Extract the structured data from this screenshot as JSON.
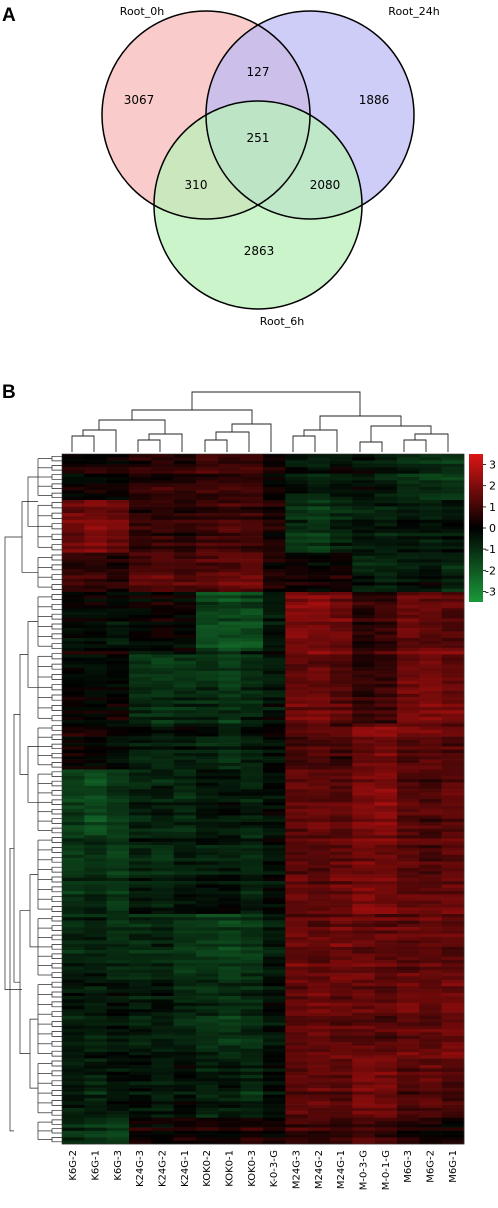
{
  "figure": {
    "panel_a_label": "A",
    "panel_b_label": "B"
  },
  "chart_data": [
    {
      "type": "venn",
      "sets": [
        {
          "name": "Root_0h",
          "color": "#f7b9b9"
        },
        {
          "name": "Root_24h",
          "color": "#bcbcf6"
        },
        {
          "name": "Root_6h",
          "color": "#b9f0b9"
        }
      ],
      "regions": [
        {
          "key": "only_0h",
          "value": "3067"
        },
        {
          "key": "only_24h",
          "value": "1886"
        },
        {
          "key": "only_6h",
          "value": "2863"
        },
        {
          "key": "0h_24h",
          "value": "127"
        },
        {
          "key": "0h_6h",
          "value": "310"
        },
        {
          "key": "24h_6h",
          "value": "2080"
        },
        {
          "key": "all",
          "value": "251"
        }
      ]
    },
    {
      "type": "heatmap",
      "columns": [
        "K6G-2",
        "K6G-1",
        "K6G-3",
        "K24G-3",
        "K24G-2",
        "K24G-1",
        "KOK0-2",
        "KOK0-1",
        "KOK0-3",
        "K-0-3-G",
        "M24G-3",
        "M24G-2",
        "M24G-1",
        "M-0-3-G",
        "M-0-1-G",
        "M6G-3",
        "M6G-2",
        "M6G-1"
      ],
      "colorbar": {
        "ticks": [
          "3",
          "2",
          "1",
          "0",
          "-1",
          "-2",
          "-3"
        ],
        "range": [
          -3.5,
          3.5
        ],
        "high_color": "#cc1111",
        "mid_color": "#000000",
        "low_color": "#1a9a3a"
      },
      "rows_approx": 230,
      "row_blocks": [
        {
          "rows": 14,
          "values": [
            0.1,
            0.2,
            0.1,
            0.4,
            0.5,
            0.4,
            0.6,
            0.6,
            0.7,
            0.2,
            -0.3,
            -0.4,
            -0.2,
            -0.2,
            -0.3,
            -0.6,
            -0.6,
            -0.7
          ]
        },
        {
          "rows": 16,
          "values": [
            1.2,
            1.3,
            1.1,
            0.5,
            0.6,
            0.5,
            0.7,
            0.7,
            0.6,
            0.3,
            -0.6,
            -0.8,
            -0.5,
            -0.3,
            -0.4,
            -0.3,
            -0.4,
            -0.2
          ]
        },
        {
          "rows": 12,
          "values": [
            0.6,
            0.5,
            0.4,
            0.8,
            0.9,
            0.8,
            0.9,
            1.0,
            1.0,
            0.3,
            0.2,
            0.1,
            0.2,
            -0.4,
            -0.5,
            -0.3,
            -0.2,
            -0.5
          ]
        },
        {
          "rows": 18,
          "values": [
            -0.1,
            0.0,
            -0.2,
            0.0,
            0.1,
            0.0,
            -1.0,
            -1.1,
            -1.0,
            -0.3,
            1.4,
            1.3,
            1.2,
            0.5,
            0.6,
            1.1,
            1.0,
            0.9
          ]
        },
        {
          "rows": 22,
          "values": [
            0.1,
            0.0,
            0.1,
            -0.5,
            -0.6,
            -0.5,
            -0.6,
            -0.7,
            -0.5,
            -0.2,
            1.1,
            1.2,
            1.0,
            0.6,
            0.7,
            1.3,
            1.4,
            1.2
          ]
        },
        {
          "rows": 14,
          "values": [
            0.2,
            0.1,
            0.0,
            -0.3,
            -0.4,
            -0.2,
            -0.4,
            -0.5,
            -0.3,
            0.0,
            0.8,
            0.9,
            0.7,
            1.2,
            1.3,
            1.0,
            1.1,
            0.9
          ]
        },
        {
          "rows": 20,
          "values": [
            -0.9,
            -1.1,
            -0.8,
            -0.5,
            -0.4,
            -0.6,
            -0.3,
            -0.2,
            -0.4,
            -0.2,
            1.0,
            1.1,
            0.9,
            1.3,
            1.4,
            0.9,
            0.8,
            1.0
          ]
        },
        {
          "rows": 24,
          "values": [
            -0.7,
            -0.6,
            -0.8,
            -0.4,
            -0.5,
            -0.3,
            -0.3,
            -0.2,
            -0.5,
            -0.2,
            1.0,
            0.9,
            1.1,
            1.3,
            1.2,
            1.0,
            0.9,
            1.1
          ]
        },
        {
          "rows": 20,
          "values": [
            -0.5,
            -0.4,
            -0.6,
            -0.6,
            -0.5,
            -0.7,
            -0.8,
            -0.9,
            -0.7,
            -0.3,
            1.1,
            1.0,
            1.2,
            1.1,
            1.0,
            1.0,
            1.1,
            1.0
          ]
        },
        {
          "rows": 24,
          "values": [
            -0.3,
            -0.4,
            -0.2,
            -0.4,
            -0.3,
            -0.5,
            -0.6,
            -0.7,
            -0.6,
            -0.2,
            1.0,
            1.1,
            1.0,
            1.0,
            0.9,
            1.1,
            1.0,
            1.2
          ]
        },
        {
          "rows": 18,
          "values": [
            -0.4,
            -0.5,
            -0.3,
            -0.3,
            -0.4,
            -0.2,
            -0.5,
            -0.4,
            -0.6,
            -0.2,
            0.9,
            1.0,
            0.8,
            1.2,
            1.1,
            0.8,
            0.9,
            0.7
          ]
        },
        {
          "rows": 8,
          "values": [
            -0.6,
            -0.7,
            -0.9,
            0.2,
            0.1,
            0.3,
            0.3,
            0.2,
            0.4,
            0.2,
            0.7,
            0.6,
            0.5,
            0.8,
            0.7,
            0.4,
            0.3,
            0.2
          ]
        }
      ]
    }
  ]
}
